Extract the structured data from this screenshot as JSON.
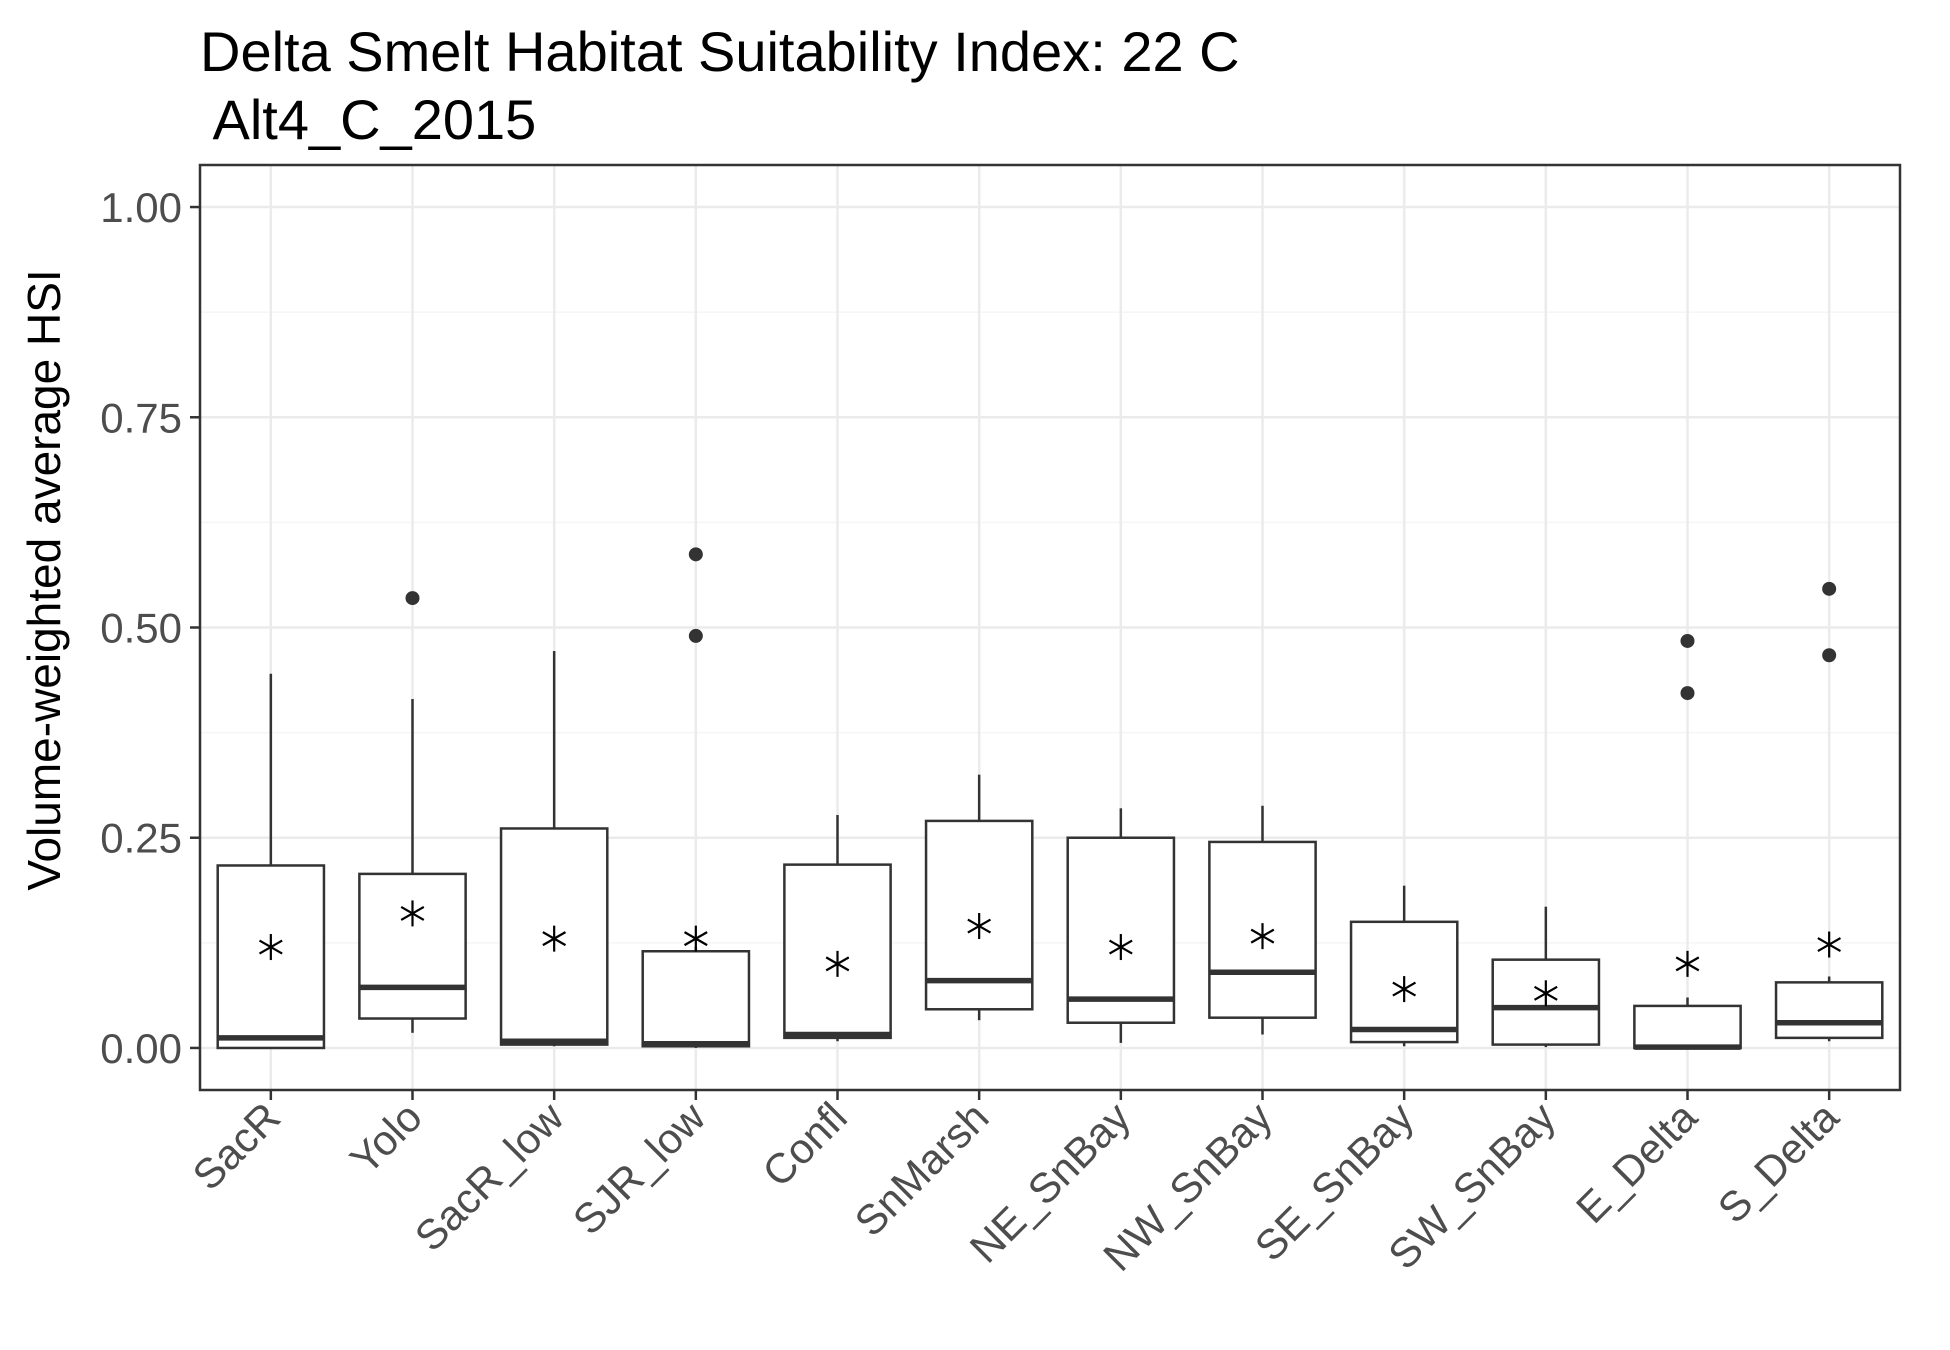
{
  "chart_data": {
    "type": "box",
    "title_lines": [
      "Delta Smelt Habitat Suitability Index: 22 C",
      " Alt4_C_2015"
    ],
    "xlabel": "",
    "ylabel": "Volume-weighted average HSI",
    "ylim": [
      -0.05,
      1.05
    ],
    "yticks": [
      0.0,
      0.25,
      0.5,
      0.75,
      1.0
    ],
    "ytick_labels": [
      "0.00",
      "0.25",
      "0.50",
      "0.75",
      "1.00"
    ],
    "grid": true,
    "legend": "none",
    "categories": [
      "SacR",
      "Yolo",
      "SacR_low",
      "SJR_low",
      "Confl",
      "SnMarsh",
      "NE_SnBay",
      "NW_SnBay",
      "SE_SnBay",
      "SW_SnBay",
      "E_Delta",
      "S_Delta"
    ],
    "boxes": [
      {
        "category": "SacR",
        "whisker_low": 0.0,
        "q1": 0.0,
        "median": 0.012,
        "q3": 0.217,
        "whisker_high": 0.445,
        "mean": 0.12,
        "outliers": []
      },
      {
        "category": "Yolo",
        "whisker_low": 0.018,
        "q1": 0.035,
        "median": 0.072,
        "q3": 0.207,
        "whisker_high": 0.415,
        "mean": 0.16,
        "outliers": [
          0.535
        ]
      },
      {
        "category": "SacR_low",
        "whisker_low": 0.002,
        "q1": 0.004,
        "median": 0.008,
        "q3": 0.261,
        "whisker_high": 0.472,
        "mean": 0.13,
        "outliers": []
      },
      {
        "category": "SJR_low",
        "whisker_low": 0.0,
        "q1": 0.002,
        "median": 0.005,
        "q3": 0.115,
        "whisker_high": 0.12,
        "mean": 0.13,
        "outliers": [
          0.49,
          0.587
        ]
      },
      {
        "category": "Confl",
        "whisker_low": 0.008,
        "q1": 0.012,
        "median": 0.016,
        "q3": 0.218,
        "whisker_high": 0.277,
        "mean": 0.1,
        "outliers": []
      },
      {
        "category": "SnMarsh",
        "whisker_low": 0.033,
        "q1": 0.046,
        "median": 0.08,
        "q3": 0.27,
        "whisker_high": 0.325,
        "mean": 0.145,
        "outliers": []
      },
      {
        "category": "NE_SnBay",
        "whisker_low": 0.006,
        "q1": 0.03,
        "median": 0.058,
        "q3": 0.25,
        "whisker_high": 0.285,
        "mean": 0.12,
        "outliers": []
      },
      {
        "category": "NW_SnBay",
        "whisker_low": 0.016,
        "q1": 0.036,
        "median": 0.09,
        "q3": 0.245,
        "whisker_high": 0.288,
        "mean": 0.133,
        "outliers": []
      },
      {
        "category": "SE_SnBay",
        "whisker_low": 0.002,
        "q1": 0.007,
        "median": 0.022,
        "q3": 0.15,
        "whisker_high": 0.193,
        "mean": 0.07,
        "outliers": []
      },
      {
        "category": "SW_SnBay",
        "whisker_low": 0.001,
        "q1": 0.004,
        "median": 0.048,
        "q3": 0.105,
        "whisker_high": 0.168,
        "mean": 0.065,
        "outliers": []
      },
      {
        "category": "E_Delta",
        "whisker_low": 0.0,
        "q1": 0.0,
        "median": 0.001,
        "q3": 0.05,
        "whisker_high": 0.06,
        "mean": 0.1,
        "outliers": [
          0.422,
          0.484
        ]
      },
      {
        "category": "S_Delta",
        "whisker_low": 0.008,
        "q1": 0.012,
        "median": 0.03,
        "q3": 0.078,
        "whisker_high": 0.085,
        "mean": 0.123,
        "outliers": [
          0.467,
          0.546
        ]
      }
    ],
    "colors": {
      "box_stroke": "#333333",
      "box_fill": "#ffffff",
      "grid_major": "#ebebeb",
      "grid_minor": "#f5f5f5",
      "panel_border": "#333333",
      "mean_marker": "#000000"
    }
  }
}
